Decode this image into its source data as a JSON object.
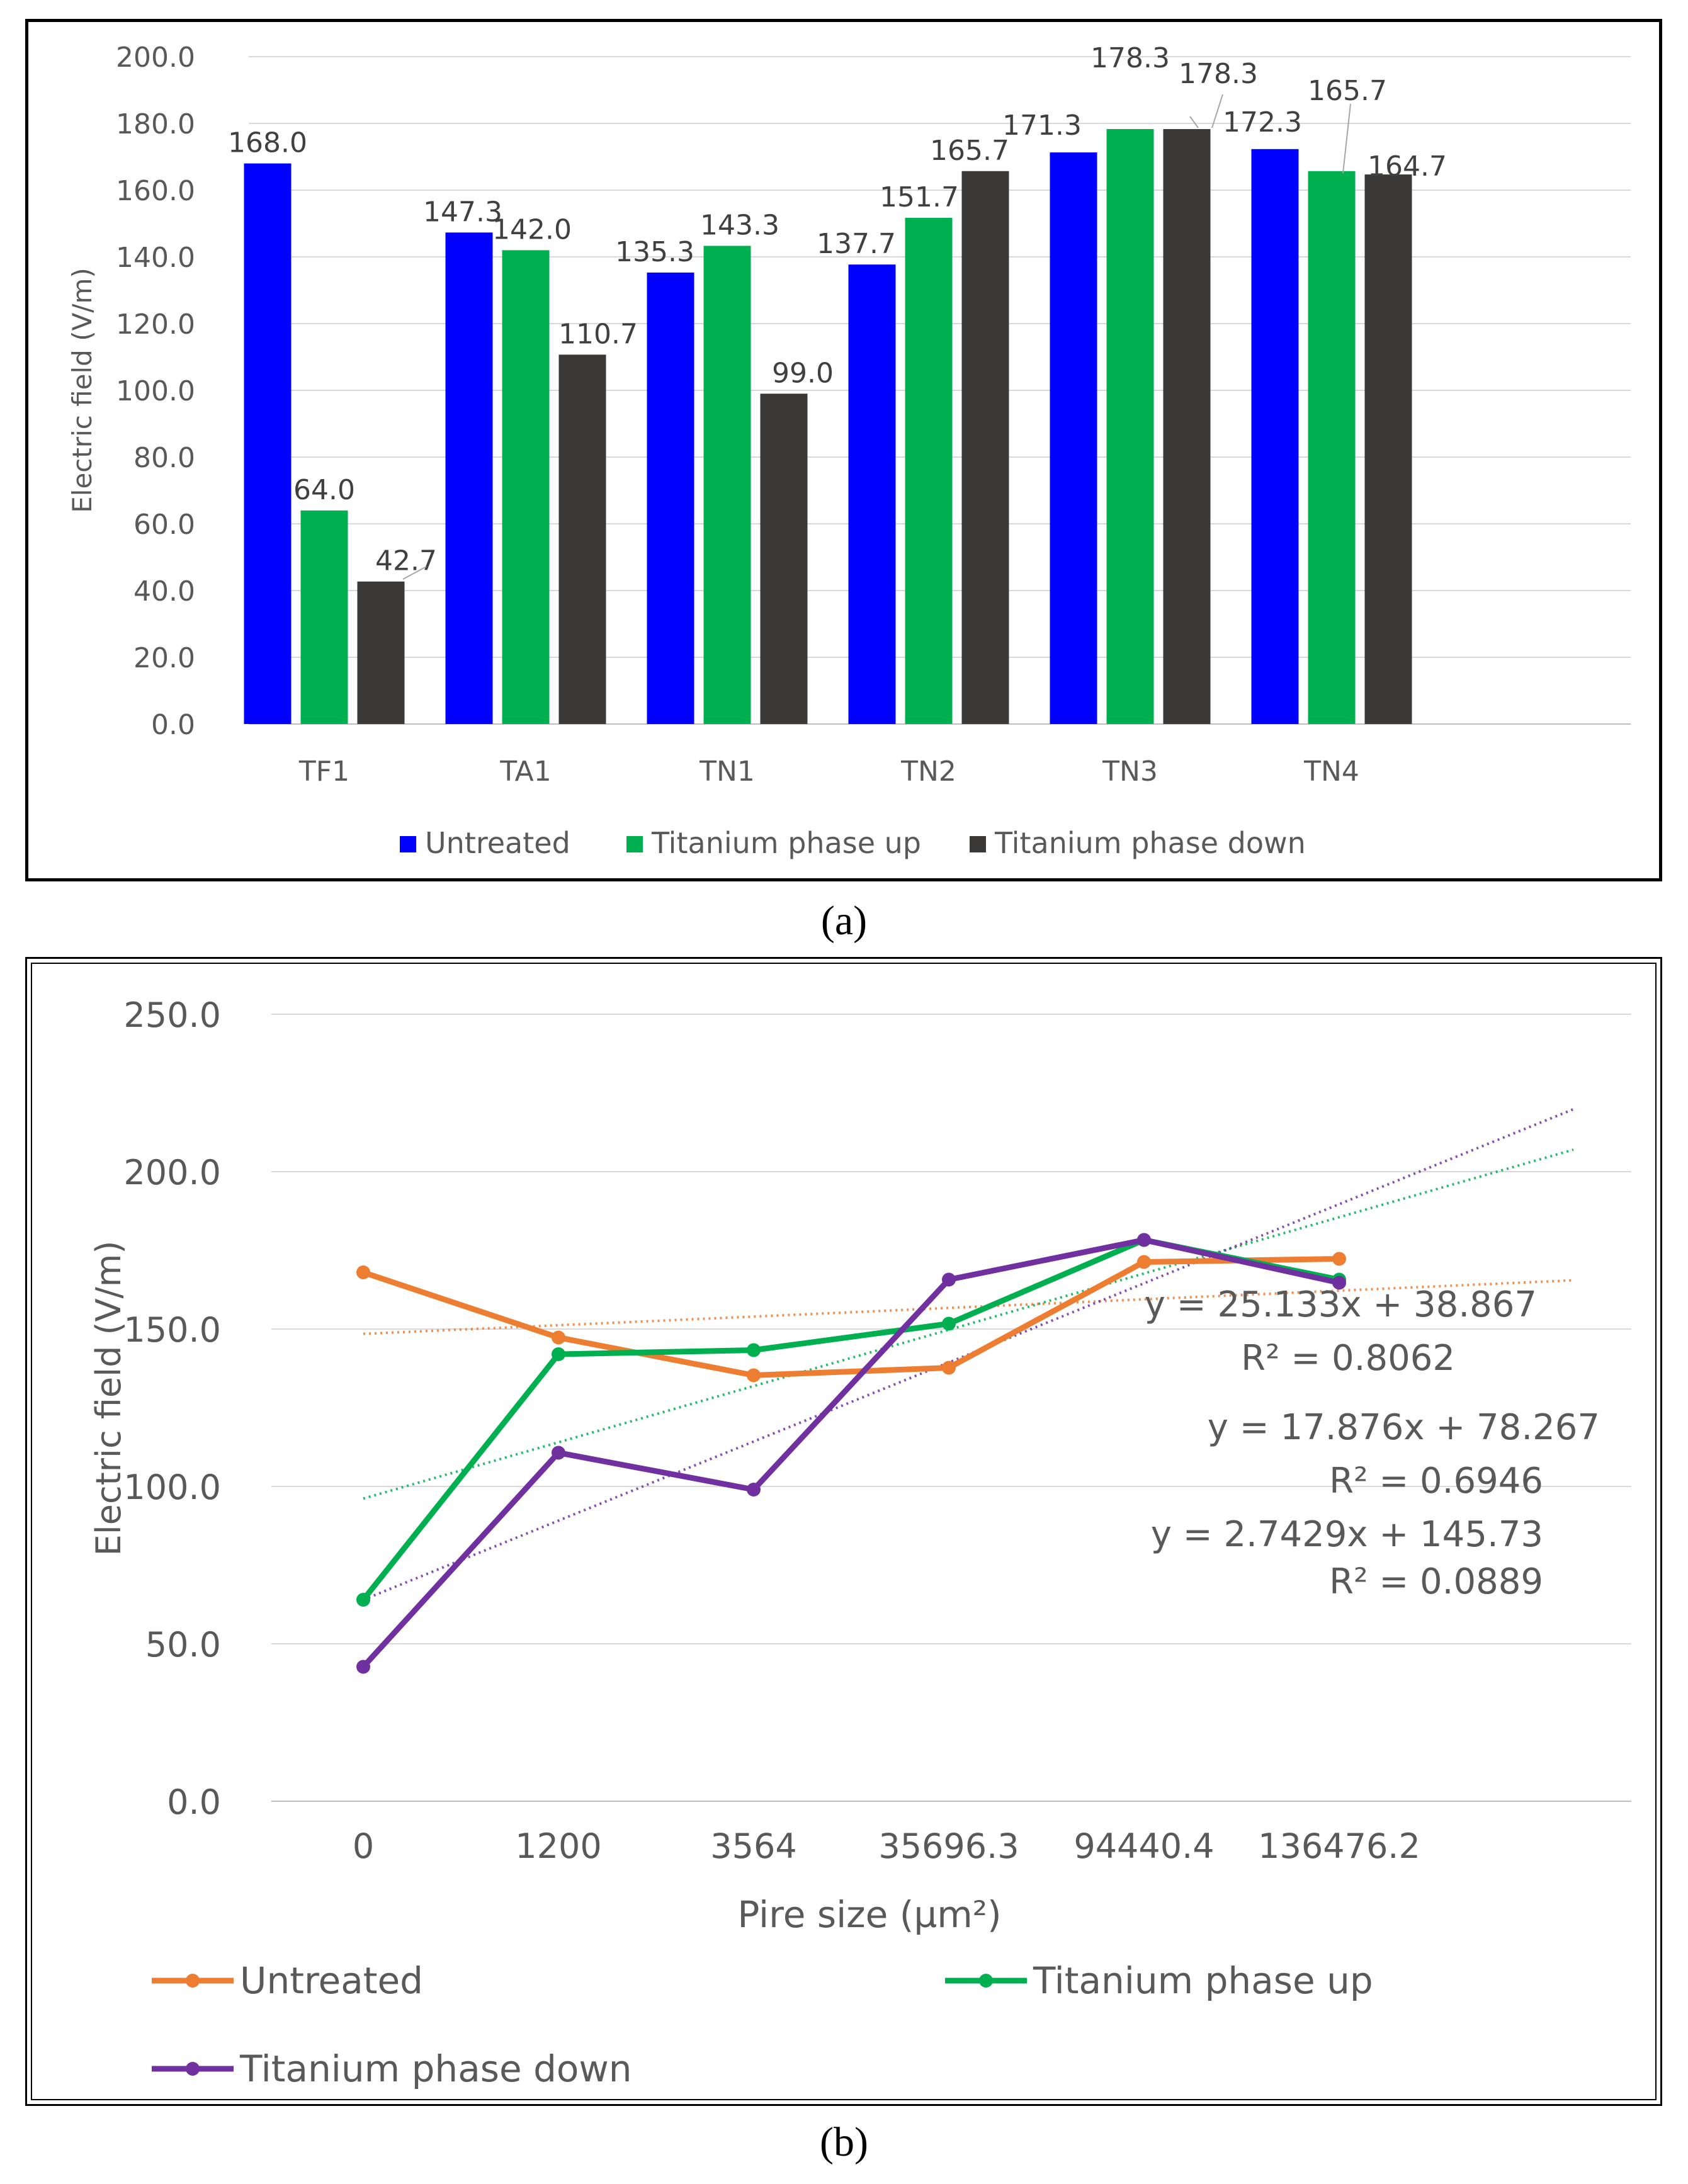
{
  "captions": {
    "a": "(a)",
    "b": "(b)"
  },
  "chart_data": [
    {
      "type": "bar",
      "title": "",
      "ylabel": "Electric field (V/m)",
      "xlabel": "",
      "categories": [
        "TF1",
        "TA1",
        "TN1",
        "TN2",
        "TN3",
        "TN4"
      ],
      "ylim": [
        0,
        200
      ],
      "yticks": [
        "0.0",
        "20.0",
        "40.0",
        "60.0",
        "80.0",
        "100.0",
        "120.0",
        "140.0",
        "160.0",
        "180.0",
        "200.0"
      ],
      "grid": true,
      "legend_position": "bottom",
      "series": [
        {
          "name": "Untreated",
          "color": "#0000ff",
          "values": [
            168.0,
            147.3,
            135.3,
            137.7,
            171.3,
            172.3
          ],
          "labels": [
            "168.0",
            "147.3",
            "135.3",
            "137.7",
            "171.3",
            "172.3"
          ]
        },
        {
          "name": "Titanium phase up",
          "color": "#00b050",
          "values": [
            64.0,
            142.0,
            143.3,
            151.7,
            178.3,
            165.7
          ],
          "labels": [
            "64.0",
            "142.0",
            "143.3",
            "151.7",
            "178.3",
            "165.7"
          ]
        },
        {
          "name": "Titanium phase down",
          "color": "#3b3838",
          "values": [
            42.7,
            110.7,
            99.0,
            165.7,
            178.3,
            164.7
          ],
          "labels": [
            "42.7",
            "110.7",
            "99.0",
            "165.7",
            "178.3",
            "164.7"
          ]
        }
      ]
    },
    {
      "type": "line",
      "title": "",
      "ylabel": "Electric field (V/m)",
      "xlabel": "Pire size (µm²)",
      "categories": [
        "0",
        "1200",
        "3564",
        "35696.3",
        "94440.4",
        "136476.2"
      ],
      "ylim": [
        0,
        250
      ],
      "yticks": [
        "0.0",
        "50.0",
        "100.0",
        "150.0",
        "200.0",
        "250.0"
      ],
      "grid": true,
      "legend_position": "bottom",
      "series": [
        {
          "name": "Untreated",
          "color": "#ed7d31",
          "values": [
            168.0,
            147.3,
            135.3,
            137.7,
            171.3,
            172.3
          ]
        },
        {
          "name": "Titanium phase up",
          "color": "#00b050",
          "values": [
            64.0,
            142.0,
            143.3,
            151.7,
            178.3,
            165.7
          ]
        },
        {
          "name": "Titanium phase down",
          "color": "#7030a0",
          "values": [
            42.7,
            110.7,
            99.0,
            165.7,
            178.3,
            164.7
          ]
        }
      ],
      "trendlines": [
        {
          "series": "Untreated",
          "slope": 2.7429,
          "intercept": 145.73,
          "equation": "y = 2.7429x + 145.73",
          "r2": "R² = 0.0889"
        },
        {
          "series": "Titanium phase up",
          "slope": 17.876,
          "intercept": 78.267,
          "equation": "y = 17.876x + 78.267",
          "r2": "R² = 0.6946"
        },
        {
          "series": "Titanium phase down",
          "slope": 25.133,
          "intercept": 38.867,
          "equation": "y = 25.133x + 38.867",
          "r2": "R² = 0.8062"
        }
      ]
    }
  ]
}
